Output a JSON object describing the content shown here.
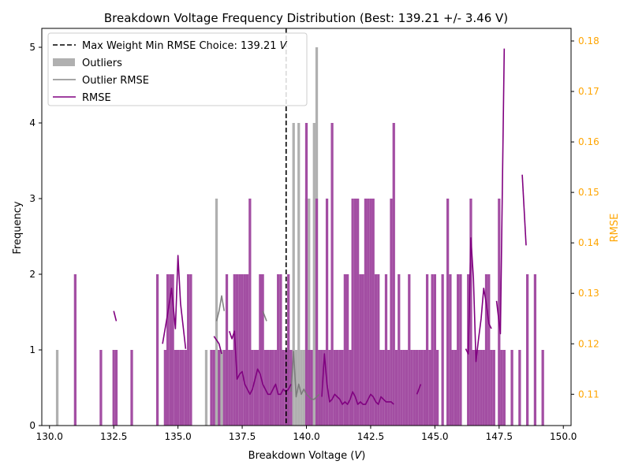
{
  "chart_data": {
    "type": "bar",
    "title": "Breakdown Voltage Frequency Distribution (Best: 139.21 +/- 3.46 V)",
    "xlabel": "Breakdown Voltage (",
    "xlabel_unit": "V",
    "xlabel_end": ")",
    "ylabel": "Frequency",
    "y2label": "RMSE",
    "xlim": [
      129.7,
      150.3
    ],
    "ylim": [
      0,
      5.25
    ],
    "y2lim": [
      0.1038,
      0.1825
    ],
    "x_ticks": [
      130.0,
      132.5,
      135.0,
      137.5,
      140.0,
      142.5,
      145.0,
      147.5,
      150.0
    ],
    "x_tick_labels": [
      "130.0",
      "132.5",
      "135.0",
      "137.5",
      "140.0",
      "142.5",
      "145.0",
      "147.5",
      "150.0"
    ],
    "y_ticks": [
      0,
      1,
      2,
      3,
      4,
      5
    ],
    "y_tick_labels": [
      "0",
      "1",
      "2",
      "3",
      "4",
      "5"
    ],
    "y2_ticks": [
      0.11,
      0.12,
      0.13,
      0.14,
      0.15,
      0.16,
      0.17,
      0.18
    ],
    "y2_tick_labels": [
      "0.11",
      "0.12",
      "0.13",
      "0.14",
      "0.15",
      "0.16",
      "0.17",
      "0.18"
    ],
    "bin_width": 0.1,
    "best_value": 139.21,
    "legend": {
      "position": "top-left",
      "entries": [
        {
          "label": "Max Weight Min RMSE Choice: 139.21 ",
          "label_unit": "V",
          "kind": "dashed-line",
          "color": "#000000"
        },
        {
          "label": "Outliers",
          "kind": "patch",
          "color": "#b0b0b0"
        },
        {
          "label": "Outlier RMSE",
          "kind": "line",
          "color": "#888888"
        },
        {
          "label": "RMSE",
          "kind": "line",
          "color": "#800080"
        }
      ]
    },
    "colors": {
      "main": "#a048a0",
      "outlier": "#b0b0b0",
      "rmse": "#800080",
      "outlier_rmse": "#777777",
      "y2_axis": "#ffa500",
      "best_line": "#000000"
    },
    "series": [
      {
        "name": "Outliers",
        "x": [
          130.3,
          136.1,
          136.5,
          136.6,
          136.7,
          136.9,
          138.6,
          139.3,
          139.5,
          139.6,
          139.7,
          139.8,
          139.9,
          140.0,
          140.1,
          140.2,
          140.3,
          140.4,
          140.5,
          140.6
        ],
        "values": [
          1,
          1,
          3,
          1,
          1,
          1,
          1,
          1,
          4,
          1,
          4,
          1,
          1,
          3,
          3,
          1,
          4,
          5,
          1,
          1
        ]
      },
      {
        "name": "Main",
        "x": [
          131.0,
          132.0,
          132.5,
          132.6,
          133.2,
          134.2,
          134.5,
          134.6,
          134.7,
          134.8,
          134.9,
          135.0,
          135.1,
          135.2,
          135.3,
          135.4,
          135.5,
          136.3,
          136.4,
          136.6,
          136.8,
          136.9,
          137.0,
          137.1,
          137.2,
          137.3,
          137.4,
          137.5,
          137.6,
          137.7,
          137.8,
          137.9,
          138.0,
          138.1,
          138.2,
          138.3,
          138.4,
          138.5,
          138.6,
          138.7,
          138.8,
          138.9,
          139.0,
          139.1,
          139.2,
          139.3,
          139.4,
          140.0,
          140.1,
          140.2,
          140.4,
          140.5,
          140.6,
          140.7,
          140.8,
          140.9,
          141.0,
          141.1,
          141.2,
          141.3,
          141.4,
          141.5,
          141.6,
          141.7,
          141.8,
          141.9,
          142.0,
          142.1,
          142.2,
          142.3,
          142.4,
          142.5,
          142.6,
          142.7,
          142.8,
          142.9,
          143.0,
          143.1,
          143.2,
          143.3,
          143.4,
          143.5,
          143.6,
          143.7,
          143.8,
          143.9,
          144.0,
          144.1,
          144.2,
          144.3,
          144.4,
          144.5,
          144.6,
          144.7,
          144.8,
          144.9,
          145.0,
          145.1,
          145.3,
          145.5,
          145.6,
          145.7,
          145.8,
          145.9,
          146.0,
          146.3,
          146.4,
          146.5,
          146.6,
          146.7,
          146.8,
          146.9,
          147.0,
          147.1,
          147.2,
          147.3,
          147.5,
          147.6,
          147.7,
          148.0,
          148.3,
          148.6,
          148.9,
          149.2
        ],
        "values": [
          2,
          1,
          1,
          1,
          1,
          2,
          1,
          2,
          2,
          2,
          1,
          1,
          1,
          1,
          1,
          2,
          2,
          1,
          1,
          1,
          1,
          2,
          1,
          1,
          2,
          2,
          2,
          2,
          2,
          2,
          3,
          1,
          1,
          1,
          2,
          2,
          1,
          1,
          1,
          1,
          1,
          2,
          2,
          1,
          1,
          2,
          1,
          4,
          1,
          1,
          3,
          1,
          1,
          1,
          3,
          1,
          4,
          1,
          1,
          1,
          1,
          2,
          2,
          1,
          3,
          3,
          3,
          2,
          2,
          3,
          3,
          3,
          3,
          2,
          2,
          1,
          1,
          2,
          1,
          3,
          4,
          1,
          2,
          1,
          1,
          1,
          2,
          1,
          1,
          1,
          1,
          1,
          1,
          2,
          1,
          2,
          2,
          1,
          2,
          3,
          2,
          1,
          1,
          2,
          2,
          2,
          3,
          1,
          1,
          1,
          1,
          1,
          2,
          2,
          1,
          1,
          3,
          1,
          1,
          1,
          1,
          2,
          2,
          1
        ]
      }
    ],
    "rmse_lines": [
      {
        "name": "RMSE",
        "segment": 1,
        "x": [
          132.5,
          132.6
        ],
        "y": [
          0.1265,
          0.1245
        ]
      },
      {
        "name": "RMSE",
        "segment": 2,
        "x": [
          134.4,
          134.6,
          134.75,
          134.9,
          135.0,
          135.1,
          135.3
        ],
        "y": [
          0.12,
          0.126,
          0.131,
          0.123,
          0.1375,
          0.128,
          0.119
        ]
      },
      {
        "name": "RMSE",
        "segment": 3,
        "x": [
          136.4,
          136.6,
          136.7
        ],
        "y": [
          0.1215,
          0.12,
          0.118
        ]
      },
      {
        "name": "RMSE",
        "segment": 4,
        "x": [
          137.0,
          137.1,
          137.2,
          137.3,
          137.4,
          137.5,
          137.6,
          137.7,
          137.8,
          137.9,
          138.0,
          138.1,
          138.2,
          138.3,
          138.4,
          138.5,
          138.6,
          138.7,
          138.8,
          138.9,
          139.0,
          139.1,
          139.2,
          139.3,
          139.4
        ],
        "y": [
          0.1225,
          0.121,
          0.1225,
          0.113,
          0.114,
          0.1145,
          0.112,
          0.111,
          0.11,
          0.111,
          0.113,
          0.115,
          0.114,
          0.112,
          0.111,
          0.11,
          0.11,
          0.111,
          0.112,
          0.11,
          0.11,
          0.111,
          0.1105,
          0.111,
          0.112
        ]
      },
      {
        "name": "RMSE",
        "segment": 5,
        "x": [
          140.6,
          140.7,
          140.8,
          140.9,
          141.0,
          141.1,
          141.2,
          141.3,
          141.4,
          141.5,
          141.6,
          141.7,
          141.8,
          141.9,
          142.0,
          142.1,
          142.2,
          142.3,
          142.4,
          142.5,
          142.6,
          142.7,
          142.8,
          142.9,
          143.0,
          143.1,
          143.2,
          143.3,
          143.4
        ],
        "y": [
          0.1095,
          0.118,
          0.112,
          0.1085,
          0.109,
          0.11,
          0.1095,
          0.109,
          0.108,
          0.1085,
          0.108,
          0.109,
          0.1105,
          0.1095,
          0.108,
          0.1085,
          0.108,
          0.108,
          0.109,
          0.11,
          0.1095,
          0.1085,
          0.108,
          0.1095,
          0.109,
          0.1085,
          0.1085,
          0.1085,
          0.108
        ]
      },
      {
        "name": "RMSE",
        "segment": 6,
        "x": [
          144.3,
          144.45
        ],
        "y": [
          0.11,
          0.112
        ]
      },
      {
        "name": "RMSE",
        "segment": 7,
        "x": [
          146.2,
          146.3,
          146.4,
          146.5,
          146.6,
          146.7,
          146.8,
          146.9,
          147.0,
          147.1,
          147.2
        ],
        "y": [
          0.119,
          0.118,
          0.141,
          0.133,
          0.1165,
          0.121,
          0.125,
          0.131,
          0.128,
          0.124,
          0.123
        ]
      },
      {
        "name": "RMSE",
        "segment": 8,
        "x": [
          147.4,
          147.55,
          147.7
        ],
        "y": [
          0.1285,
          0.122,
          0.1785
        ]
      },
      {
        "name": "RMSE",
        "segment": 9,
        "x": [
          148.4,
          148.55
        ],
        "y": [
          0.1535,
          0.1395
        ]
      }
    ],
    "outlier_rmse_lines": [
      {
        "name": "Outlier RMSE",
        "segment": 1,
        "x": [
          136.5,
          136.6,
          136.7,
          136.8
        ],
        "y": [
          0.1245,
          0.1265,
          0.1295,
          0.1265
        ]
      },
      {
        "name": "Outlier RMSE",
        "segment": 2,
        "x": [
          138.3,
          138.45
        ],
        "y": [
          0.1265,
          0.1245
        ]
      },
      {
        "name": "Outlier RMSE",
        "segment": 3,
        "x": [
          139.4,
          139.5,
          139.6,
          139.7,
          139.8,
          139.9,
          140.0,
          140.1,
          140.2,
          140.3,
          140.4,
          140.5
        ],
        "y": [
          0.1105,
          0.1185,
          0.1095,
          0.112,
          0.11,
          0.111,
          0.11,
          0.1095,
          0.109,
          0.109,
          0.1095,
          0.11
        ]
      }
    ]
  }
}
